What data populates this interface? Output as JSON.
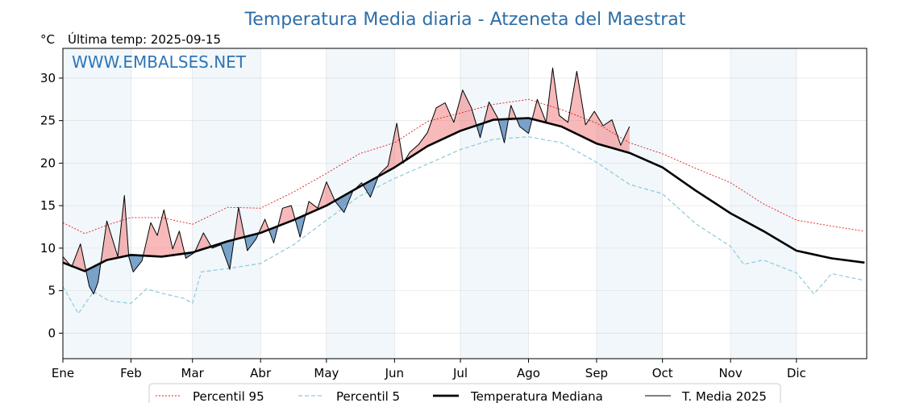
{
  "chart_data": {
    "type": "line",
    "title": "Temperatura Media diaria - Atzeneta del Maestrat",
    "unit_label": "°C",
    "last_temp_label": "Última temp: 2025-09-15",
    "watermark": "WWW.EMBALSES.NET",
    "ylim": [
      -3,
      33.5
    ],
    "yticks": [
      0,
      5,
      10,
      15,
      20,
      25,
      30
    ],
    "xlim": [
      0,
      366
    ],
    "month_labels": [
      "Ene",
      "Feb",
      "Mar",
      "Abr",
      "May",
      "Jun",
      "Jul",
      "Ago",
      "Sep",
      "Oct",
      "Nov",
      "Dic"
    ],
    "month_starts": [
      0,
      31,
      59,
      90,
      120,
      151,
      181,
      212,
      243,
      273,
      304,
      334
    ],
    "grid": true,
    "shaded_month_bands": true,
    "legend_position": "bottom",
    "colors": {
      "p95": "#e41a1c",
      "p5": "#8ec9dc",
      "median": "#000000",
      "year": "#000000",
      "above_fill": "#f08080",
      "below_fill": "#4f86b8",
      "band": "#e6f0f8",
      "title": "#2e6ea6",
      "watermark": "#2e75b6"
    },
    "series": [
      {
        "name": "Percentil 95",
        "style": "dotted",
        "x": [
          0,
          10,
          20,
          31,
          45,
          59,
          75,
          90,
          105,
          120,
          135,
          151,
          166,
          181,
          196,
          212,
          227,
          243,
          258,
          273,
          288,
          304,
          319,
          334,
          350,
          365
        ],
        "y": [
          13.0,
          11.7,
          12.7,
          13.6,
          13.6,
          12.8,
          14.8,
          14.7,
          16.6,
          18.8,
          21.1,
          22.4,
          24.9,
          25.9,
          26.9,
          27.5,
          26.3,
          24.7,
          22.4,
          21.1,
          19.4,
          17.7,
          15.2,
          13.3,
          12.6,
          12.0
        ]
      },
      {
        "name": "Percentil 5",
        "style": "dashed",
        "x": [
          0,
          7,
          14,
          21,
          31,
          38,
          45,
          55,
          59,
          63,
          75,
          90,
          105,
          120,
          135,
          151,
          166,
          181,
          196,
          212,
          227,
          243,
          258,
          273,
          288,
          304,
          310,
          319,
          334,
          342,
          350,
          365
        ],
        "y": [
          5.5,
          2.3,
          4.9,
          3.8,
          3.5,
          5.2,
          4.7,
          4.1,
          3.5,
          7.2,
          7.6,
          8.2,
          10.4,
          13.3,
          16.1,
          18.2,
          19.9,
          21.6,
          22.8,
          23.1,
          22.4,
          20.1,
          17.5,
          16.4,
          12.9,
          10.2,
          8.1,
          8.6,
          7.1,
          4.6,
          7.0,
          6.2
        ]
      },
      {
        "name": "Temperatura Mediana",
        "style": "solid-thick",
        "x": [
          0,
          10,
          20,
          31,
          45,
          59,
          75,
          90,
          105,
          120,
          135,
          151,
          166,
          181,
          196,
          212,
          227,
          243,
          258,
          273,
          288,
          304,
          319,
          334,
          350,
          365
        ],
        "y": [
          8.3,
          7.3,
          8.6,
          9.2,
          9.0,
          9.5,
          10.8,
          11.8,
          13.3,
          15.0,
          17.2,
          19.5,
          22.0,
          23.8,
          25.1,
          25.3,
          24.3,
          22.3,
          21.2,
          19.5,
          16.8,
          14.1,
          12.0,
          9.7,
          8.8,
          8.3
        ]
      },
      {
        "name": "T. Media 2025",
        "style": "solid",
        "x": [
          0,
          4,
          8,
          12,
          14,
          16,
          20,
          25,
          28,
          30,
          32,
          36,
          40,
          43,
          46,
          50,
          53,
          56,
          60,
          64,
          68,
          72,
          76,
          80,
          84,
          88,
          92,
          96,
          100,
          104,
          108,
          112,
          116,
          120,
          124,
          128,
          132,
          136,
          140,
          144,
          148,
          152,
          155,
          158,
          162,
          166,
          170,
          174,
          178,
          182,
          186,
          190,
          194,
          198,
          201,
          204,
          208,
          212,
          216,
          220,
          223,
          226,
          230,
          234,
          238,
          242,
          246,
          250,
          254,
          258
        ],
        "y": [
          9.0,
          7.8,
          10.5,
          5.5,
          4.6,
          6.0,
          13.2,
          9.0,
          16.2,
          9.0,
          7.2,
          8.5,
          13.0,
          11.5,
          14.5,
          9.9,
          12.0,
          8.8,
          9.5,
          11.8,
          10.0,
          10.4,
          7.5,
          14.8,
          9.7,
          11.1,
          13.4,
          10.6,
          14.7,
          15.0,
          11.3,
          15.5,
          14.7,
          17.8,
          15.5,
          14.2,
          16.7,
          17.7,
          16.0,
          18.7,
          19.7,
          24.7,
          20.0,
          21.3,
          22.2,
          23.6,
          26.5,
          27.1,
          24.8,
          28.6,
          26.5,
          23.0,
          27.2,
          25.3,
          22.4,
          26.8,
          24.3,
          23.5,
          27.5,
          24.8,
          31.2,
          25.6,
          24.8,
          30.8,
          24.5,
          26.1,
          24.4,
          25.1,
          22.1,
          24.3
        ]
      }
    ]
  }
}
